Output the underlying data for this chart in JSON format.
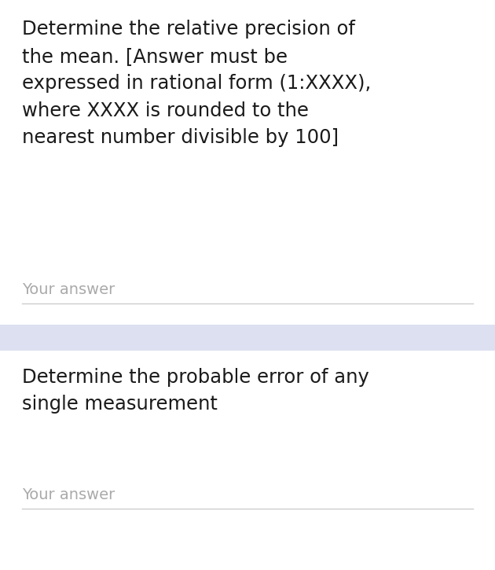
{
  "background_color": "#ffffff",
  "divider_color": "#dde0f0",
  "question1_text": "Determine the relative precision of\nthe mean. [Answer must be\nexpressed in rational form (1:XXXX),\nwhere XXXX is rounded to the\nnearest number divisible by 100]",
  "answer1_label": "Your answer",
  "question2_text": "Determine the probable error of any\nsingle measurement",
  "answer2_label": "Your answer",
  "text_color": "#1a1a1a",
  "answer_label_color": "#aaaaaa",
  "line_color": "#cccccc",
  "font_size_question": 17.5,
  "font_size_answer": 14,
  "fig_width": 6.3,
  "fig_height": 7.25,
  "dpi": 100
}
